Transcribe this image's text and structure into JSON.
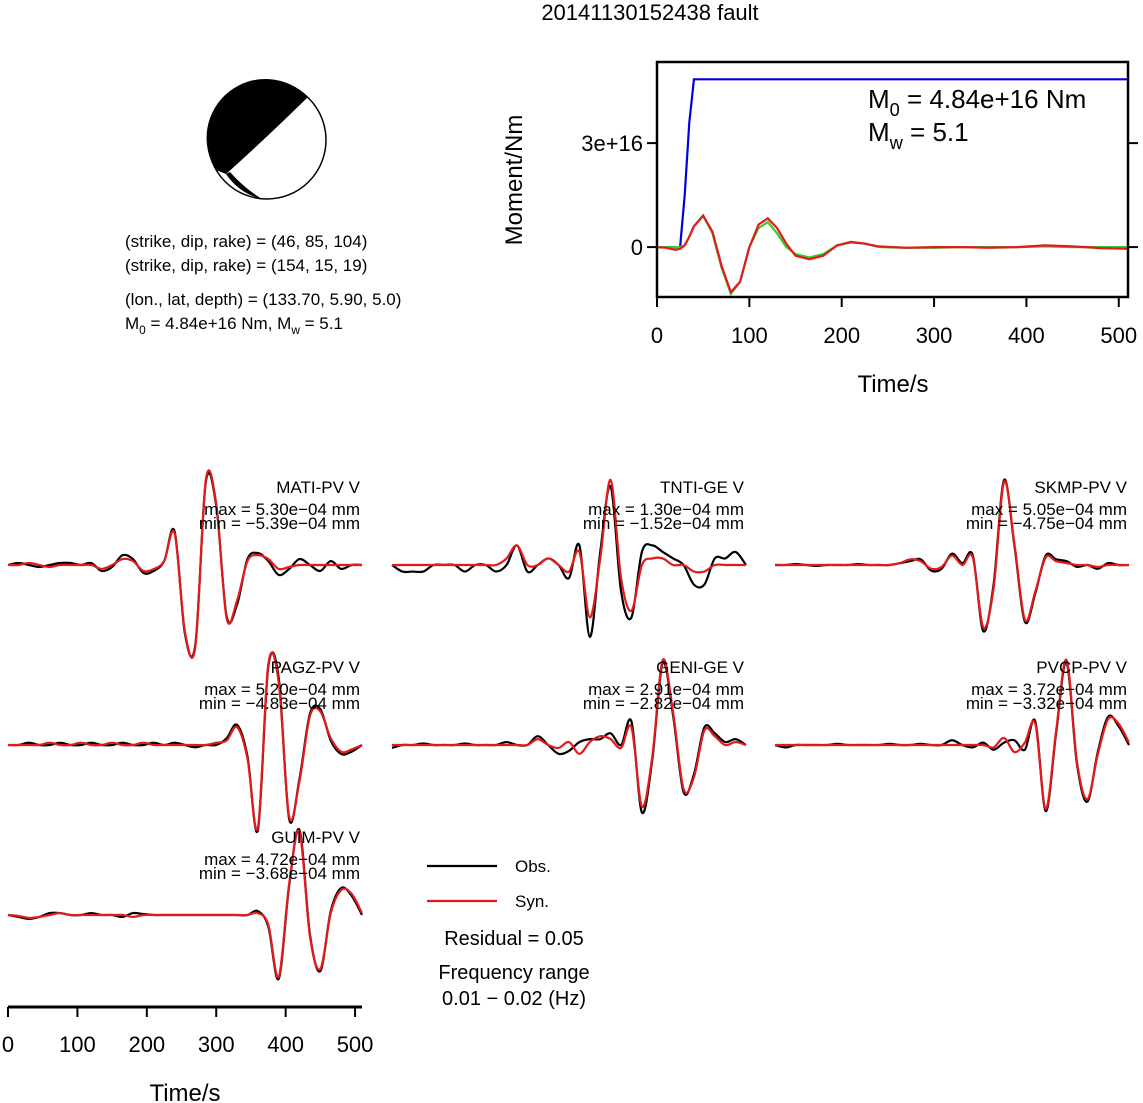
{
  "title": "20141130152438 fault",
  "mechanism": {
    "lines": [
      "(strike, dip, rake) = (46, 85, 104)",
      "(strike, dip, rake) = (154, 15, 19)",
      "(lon., lat, depth) = (133.70, 5.90, 5.0)"
    ],
    "moment_parts": [
      "M",
      "0",
      " = 4.84e+16 Nm, M",
      "w",
      " = 5.1"
    ]
  },
  "chart_data": [
    {
      "type": "line",
      "ylabel": "Moment/Nm",
      "xlabel": "Time/s",
      "xlim": [
        0,
        510
      ],
      "xticks": [
        0,
        100,
        200,
        300,
        400,
        500
      ],
      "ylim": [
        -1.44e+16,
        5.34e+16
      ],
      "yticks": [
        0,
        {
          "value": 3e+16,
          "label": "3e+16"
        }
      ],
      "annotations": [
        [
          "M",
          "0",
          " = 4.84e+16 Nm"
        ],
        [
          "M",
          "w",
          " = 5.1"
        ]
      ],
      "x": [
        0,
        10,
        20,
        25,
        30,
        35,
        40,
        50,
        60,
        70,
        80,
        90,
        100,
        110,
        120,
        130,
        140,
        150,
        165,
        180,
        195,
        210,
        225,
        240,
        270,
        300,
        330,
        360,
        390,
        420,
        450,
        480,
        510
      ],
      "series": [
        {
          "color": "#0000e0",
          "values": [
            0,
            0,
            0,
            0,
            1.5e+16,
            3.6e+16,
            4.84e+16,
            4.84e+16,
            4.84e+16,
            4.84e+16,
            4.84e+16,
            4.84e+16,
            4.84e+16,
            4.84e+16,
            4.84e+16,
            4.84e+16,
            4.84e+16,
            4.84e+16,
            4.84e+16,
            4.84e+16,
            4.84e+16,
            4.84e+16,
            4.84e+16,
            4.84e+16,
            4.84e+16,
            4.84e+16,
            4.84e+16,
            4.84e+16,
            4.84e+16,
            4.84e+16,
            4.84e+16,
            4.84e+16,
            4.84e+16
          ]
        },
        {
          "color": "#33cc33",
          "values": [
            0,
            0,
            0,
            0,
            500000000000000.0,
            3000000000000000.0,
            6000000000000000.0,
            9200000000000000.0,
            4000000000000000.0,
            -6000000000000000.0,
            -1.35e+16,
            -1e+16,
            0,
            5500000000000000.0,
            7200000000000000.0,
            4000000000000000.0,
            0,
            -2000000000000000.0,
            -3000000000000000.0,
            -2000000000000000.0,
            500000000000000.0,
            1300000000000000.0,
            1000000000000000.0,
            0,
            -200000000000000.0,
            -200000000000000.0,
            0,
            0,
            0,
            200000000000000.0,
            0,
            0,
            0
          ]
        },
        {
          "color": "#e31a1c",
          "values": [
            0,
            -200000000000000.0,
            -800000000000000.0,
            -500000000000000.0,
            500000000000000.0,
            3000000000000000.0,
            6000000000000000.0,
            9000000000000000.0,
            4500000000000000.0,
            -5500000000000000.0,
            -1.3e+16,
            -1e+16,
            0,
            6500000000000000.0,
            8300000000000000.0,
            5500000000000000.0,
            1000000000000000.0,
            -2500000000000000.0,
            -3500000000000000.0,
            -2500000000000000.0,
            500000000000000.0,
            1500000000000000.0,
            1000000000000000.0,
            200000000000000.0,
            -200000000000000.0,
            0,
            0,
            -200000000000000.0,
            0,
            500000000000000.0,
            200000000000000.0,
            -300000000000000.0,
            -500000000000000.0
          ]
        }
      ]
    },
    {
      "type": "waveforms",
      "xlabel": "Time/s",
      "xlim": [
        0,
        510
      ],
      "xticks": [
        0,
        100,
        200,
        300,
        400,
        500
      ],
      "legend": [
        {
          "name": "Obs.",
          "color": "#000000"
        },
        {
          "name": "Syn.",
          "color": "#e31a1c"
        }
      ],
      "notes": [
        "Residual = 0.05",
        "Frequency range",
        "0.01 − 0.02 (Hz)"
      ],
      "x": [
        0,
        15,
        30,
        45,
        60,
        75,
        90,
        105,
        120,
        135,
        150,
        165,
        180,
        195,
        210,
        225,
        240,
        255,
        270,
        285,
        300,
        315,
        330,
        345,
        360,
        375,
        390,
        405,
        420,
        435,
        450,
        465,
        480,
        495,
        510
      ],
      "panels": [
        {
          "station": "MATI-PV V",
          "max_label": "max = 5.30e−04 mm",
          "min_label": "min = −5.39e−04 mm",
          "obs": [
            0,
            1e-05,
            0,
            -1e-05,
            0,
            1e-05,
            1e-05,
            0,
            1e-05,
            -3e-05,
            -1e-05,
            5e-05,
            3e-05,
            -4e-05,
            -3e-05,
            2e-05,
            0.00017,
            -0.00035,
            -0.0004,
            0.00042,
            0.0003,
            -0.00026,
            -0.0002,
            3e-05,
            6e-05,
            2e-05,
            -5e-05,
            -2e-05,
            3e-05,
            0,
            -3e-05,
            2e-05,
            -2e-05,
            0,
            0
          ],
          "syn": [
            0,
            0,
            1e-05,
            0,
            -1e-05,
            0,
            0,
            0,
            0,
            -2e-05,
            0,
            3e-05,
            2e-05,
            -3e-05,
            -2e-05,
            2e-05,
            0.00016,
            -0.00034,
            -0.00041,
            0.00043,
            0.00031,
            -0.00027,
            -0.00018,
            2e-05,
            5e-05,
            3e-05,
            -2e-05,
            -1e-05,
            0,
            0,
            0,
            0,
            0,
            0,
            0
          ]
        },
        {
          "station": "TNTI-GE V",
          "max_label": "max = 1.30e−04 mm",
          "min_label": "min = −1.52e−04 mm",
          "obs": [
            0,
            -1e-05,
            -1e-05,
            -1e-05,
            0,
            0,
            0,
            -1e-05,
            0,
            0,
            -1e-05,
            0,
            3e-05,
            -1e-05,
            0,
            1e-05,
            0,
            -2e-05,
            3e-05,
            -0.00011,
            2e-05,
            0.00012,
            -4e-05,
            -8e-05,
            2e-05,
            3e-05,
            2e-05,
            1e-05,
            0,
            -3e-05,
            -3e-05,
            1e-05,
            1e-05,
            2e-05,
            0
          ],
          "syn": [
            0,
            0,
            0,
            0,
            0,
            0,
            0,
            0,
            0,
            0,
            0,
            1e-05,
            3e-05,
            0,
            0,
            1e-05,
            0,
            -1e-05,
            2e-05,
            -8e-05,
            1e-05,
            0.00013,
            -2e-05,
            -7e-05,
            0,
            1e-05,
            1e-05,
            0,
            0,
            -1e-05,
            -1e-05,
            0,
            0,
            0,
            0
          ]
        },
        {
          "station": "SKMP-PV V",
          "max_label": "max = 5.05e−04 mm",
          "min_label": "min = −4.75e−04 mm",
          "obs": [
            0,
            0,
            5e-06,
            0,
            -5e-06,
            0,
            0,
            0,
            5e-06,
            0,
            0,
            0,
            1e-05,
            2e-05,
            3e-05,
            -3e-05,
            -2e-05,
            6e-05,
            1e-05,
            5e-05,
            -0.00035,
            -0.0001,
            0.00045,
            0.0001,
            -0.0003,
            -0.00015,
            5e-05,
            3e-05,
            2e-05,
            -1e-05,
            0,
            -2e-05,
            1e-05,
            0,
            0
          ],
          "syn": [
            0,
            0,
            0,
            0,
            0,
            0,
            0,
            0,
            0,
            0,
            0,
            0,
            1e-05,
            3e-05,
            2e-05,
            -2e-05,
            -1e-05,
            5e-05,
            0,
            4e-05,
            -0.00033,
            -0.00012,
            0.00044,
            0.00011,
            -0.00029,
            -0.00014,
            4e-05,
            2e-05,
            1e-05,
            0,
            0,
            -1e-05,
            0,
            0,
            0
          ]
        },
        {
          "station": "PAGZ-PV V",
          "max_label": "max = 5.20e−04 mm",
          "min_label": "min = −4.83e−04 mm",
          "obs": [
            0,
            0,
            1e-05,
            0,
            0,
            1e-05,
            0,
            0,
            1e-05,
            0,
            0,
            1e-05,
            0,
            0,
            1e-05,
            0,
            1e-05,
            0,
            -1e-05,
            0,
            0,
            3e-05,
            9e-05,
            -5e-05,
            -0.00038,
            0.00035,
            0.0003,
            -0.00033,
            -0.00015,
            0.00014,
            0.00016,
            2e-05,
            -4e-05,
            -3e-05,
            0
          ],
          "syn": [
            0,
            0,
            0,
            0,
            1e-05,
            0,
            0,
            1e-05,
            0,
            0,
            1e-05,
            0,
            0,
            1e-05,
            0,
            0,
            0,
            0,
            0,
            0,
            1e-05,
            2e-05,
            8e-05,
            -6e-05,
            -0.00037,
            0.00036,
            0.00028,
            -0.00032,
            -0.00016,
            0.00013,
            0.00015,
            3e-05,
            -3e-05,
            -2e-05,
            0
          ]
        },
        {
          "station": "GENI-GE V",
          "max_label": "max = 2.91e−04 mm",
          "min_label": "min = −2.82e−04 mm",
          "obs": [
            -1e-05,
            0,
            0,
            5e-06,
            0,
            0,
            0,
            5e-06,
            0,
            0,
            0,
            1e-05,
            0,
            0,
            3e-05,
            0,
            -3e-05,
            -2e-05,
            1e-05,
            2e-05,
            2e-05,
            4e-05,
            0,
            8e-05,
            -0.00023,
            -5e-05,
            0.00028,
            0.0001,
            -0.00016,
            -0.0001,
            6e-05,
            4e-05,
            1e-05,
            2e-05,
            0
          ],
          "syn": [
            0,
            0,
            0,
            0,
            0,
            0,
            0,
            0,
            0,
            0,
            0,
            0,
            0,
            0,
            2e-05,
            0,
            -1e-05,
            1e-05,
            -3e-05,
            1e-05,
            3e-05,
            2e-05,
            -1e-05,
            6e-05,
            -0.00021,
            -4e-05,
            0.00029,
            0.00011,
            -0.00015,
            -0.00011,
            5e-05,
            3e-05,
            0,
            1e-05,
            0
          ]
        },
        {
          "station": "PVCP-PV V",
          "max_label": "max = 3.72e−04 mm",
          "min_label": "min = −3.32e−04 mm",
          "obs": [
            0,
            -1e-05,
            0,
            0,
            0,
            0,
            5e-06,
            0,
            0,
            0,
            0,
            5e-06,
            0,
            0,
            5e-06,
            0,
            0,
            2e-05,
            0,
            -1e-05,
            1e-05,
            -2e-05,
            1e-05,
            2e-05,
            -2e-05,
            0.0001,
            -0.00028,
            5e-05,
            0.00035,
            -8e-05,
            -0.00024,
            -3e-05,
            0.00012,
            8e-05,
            0
          ],
          "syn": [
            0,
            0,
            0,
            0,
            0,
            0,
            0,
            0,
            0,
            0,
            0,
            0,
            0,
            0,
            0,
            0,
            0,
            0,
            0,
            0,
            0,
            -1e-05,
            3e-05,
            -3e-05,
            1e-05,
            9e-05,
            -0.00027,
            6e-05,
            0.00036,
            -7e-05,
            -0.00023,
            -4e-05,
            0.00011,
            9e-05,
            1e-05
          ]
        },
        {
          "station": "GUIM-PV V",
          "max_label": "max = 4.72e−04 mm",
          "min_label": "min = −3.68e−04 mm",
          "obs": [
            0,
            -1e-05,
            -2e-05,
            -1e-05,
            1e-05,
            1e-05,
            0,
            0,
            1e-05,
            0,
            0,
            -1e-05,
            1e-05,
            5e-06,
            0,
            0,
            0,
            0,
            0,
            0,
            0,
            0,
            0,
            0,
            2e-05,
            -6e-05,
            -0.00033,
            0.00015,
            0.00044,
            -0.0001,
            -0.00029,
            2e-05,
            0.00014,
            0.0001,
            0
          ],
          "syn": [
            0,
            -5e-06,
            -1.5e-05,
            -1e-05,
            0,
            1e-05,
            0,
            0,
            0,
            0,
            0,
            0,
            -1e-05,
            0,
            0,
            0,
            0,
            0,
            0,
            0,
            0,
            0,
            0,
            0,
            1e-05,
            -5e-05,
            -0.00032,
            0.00016,
            0.00043,
            -0.00011,
            -0.00028,
            1e-05,
            0.00013,
            0.00011,
            1e-05
          ]
        }
      ]
    }
  ]
}
